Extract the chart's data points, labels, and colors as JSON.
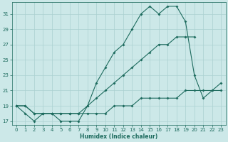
{
  "xlabel": "Humidex (Indice chaleur)",
  "x": [
    0,
    1,
    2,
    3,
    4,
    5,
    6,
    7,
    8,
    9,
    10,
    11,
    12,
    13,
    14,
    15,
    16,
    17,
    18,
    19,
    20,
    21,
    22,
    23
  ],
  "line1": [
    19,
    18,
    17,
    18,
    18,
    17,
    17,
    17,
    19,
    22,
    24,
    26,
    27,
    29,
    31,
    32,
    31,
    32,
    32,
    30,
    23,
    20,
    21,
    22
  ],
  "line2": [
    19,
    19,
    18,
    18,
    18,
    18,
    18,
    18,
    19,
    20,
    21,
    22,
    23,
    24,
    25,
    26,
    27,
    27,
    28,
    28,
    28,
    null,
    null,
    null
  ],
  "line3": [
    19,
    19,
    18,
    18,
    18,
    18,
    18,
    18,
    18,
    18,
    18,
    19,
    19,
    19,
    20,
    20,
    20,
    20,
    20,
    21,
    21,
    21,
    21,
    21
  ],
  "line_color": "#1d6b5e",
  "bg_color": "#cce8e8",
  "grid_color": "#aad0d0",
  "ylim": [
    16.5,
    32.5
  ],
  "xlim": [
    -0.5,
    23.5
  ],
  "yticks": [
    17,
    19,
    21,
    23,
    25,
    27,
    29,
    31
  ],
  "xticks": [
    0,
    1,
    2,
    3,
    4,
    5,
    6,
    7,
    8,
    9,
    10,
    11,
    12,
    13,
    14,
    15,
    16,
    17,
    18,
    19,
    20,
    21,
    22,
    23
  ]
}
